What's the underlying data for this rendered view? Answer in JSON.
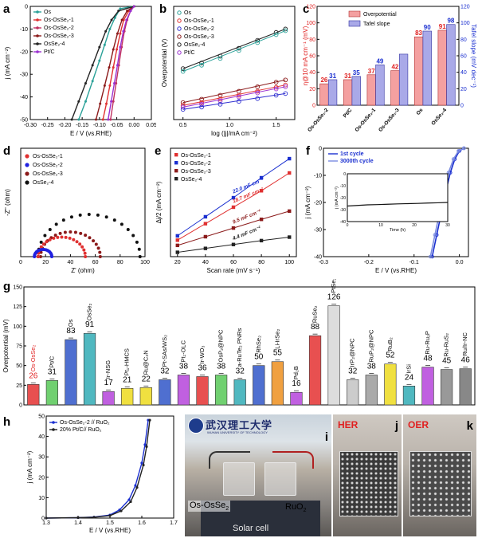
{
  "figure": {
    "panel_labels": [
      "a",
      "b",
      "c",
      "d",
      "e",
      "f",
      "g",
      "h",
      "i",
      "j",
      "k"
    ]
  },
  "colors": {
    "os": "#2aa198",
    "os_osse2_1": "#e03030",
    "os_osse2_2": "#c03060",
    "os_osse2_3": "#8b1a1a",
    "osse2_4": "#222222",
    "ptc": "#9b30d0",
    "overpotential_bar": "#f4a0a0",
    "tafel_bar": "#a9a9e8",
    "red_text": "#e02020",
    "blue_text": "#1a2fd0"
  },
  "chart_data": [
    {
      "id": "a",
      "type": "line",
      "xlabel": "E / V (vs.RHE)",
      "ylabel": "j (mA cm⁻²)",
      "xlim": [
        -0.3,
        0.05
      ],
      "ylim": [
        -50,
        0
      ],
      "xticks": [
        "-0.30",
        "-0.25",
        "-0.20",
        "-0.15",
        "-0.10",
        "-0.05",
        "0.00",
        "0.05"
      ],
      "yticks": [
        "0",
        "-10",
        "-20",
        "-30",
        "-40",
        "-50"
      ],
      "legend": [
        "Os",
        "Os-OsSe₂-1",
        "Os-OsSe₂-2",
        "Os-OsSe₂-3",
        "OsSe₂-4",
        "Pt/C"
      ],
      "series": [
        {
          "name": "Os",
          "color": "#2aa198",
          "x": [
            -0.16,
            -0.14,
            -0.12,
            -0.1,
            -0.085,
            -0.07,
            -0.055,
            -0.04,
            0.0
          ],
          "y": [
            -50,
            -42,
            -33,
            -24,
            -17,
            -10,
            -5,
            -1,
            0
          ]
        },
        {
          "name": "Os-OsSe₂-1",
          "color": "#e03030",
          "x": [
            -0.09,
            -0.08,
            -0.07,
            -0.06,
            -0.05,
            -0.04,
            -0.03,
            -0.015,
            0.0
          ],
          "y": [
            -50,
            -43,
            -35,
            -27,
            -19,
            -12,
            -6,
            -2,
            0
          ]
        },
        {
          "name": "Os-OsSe₂-2",
          "color": "#c03060",
          "x": [
            -0.068,
            -0.06,
            -0.052,
            -0.044,
            -0.036,
            -0.028,
            -0.02,
            -0.01,
            0.0
          ],
          "y": [
            -50,
            -42,
            -34,
            -26,
            -18,
            -11,
            -6,
            -2,
            0
          ]
        },
        {
          "name": "Os-OsSe₂-3",
          "color": "#8b1a1a",
          "x": [
            -0.11,
            -0.098,
            -0.085,
            -0.072,
            -0.06,
            -0.048,
            -0.035,
            -0.02,
            0.0
          ],
          "y": [
            -50,
            -43,
            -35,
            -27,
            -19,
            -12,
            -6,
            -2,
            0
          ]
        },
        {
          "name": "OsSe₂-4",
          "color": "#222222",
          "x": [
            -0.18,
            -0.16,
            -0.14,
            -0.12,
            -0.1,
            -0.082,
            -0.065,
            -0.045,
            0.0
          ],
          "y": [
            -50,
            -42,
            -34,
            -26,
            -18,
            -11,
            -6,
            -2,
            0
          ]
        },
        {
          "name": "Pt/C",
          "color": "#9b30d0",
          "x": [
            -0.075,
            -0.066,
            -0.057,
            -0.048,
            -0.04,
            -0.031,
            -0.022,
            -0.01,
            0.0
          ],
          "y": [
            -50,
            -42,
            -34,
            -26,
            -18,
            -11,
            -6,
            -2,
            0
          ]
        }
      ]
    },
    {
      "id": "b",
      "type": "scatter",
      "xlabel": "log (|j|/mA cm⁻²)",
      "ylabel": "Overpotential (V)",
      "xlim": [
        0.4,
        1.7
      ],
      "ylim": [
        0.0,
        0.2
      ],
      "xticks": [
        "0.5",
        "1.0",
        "1.5"
      ],
      "legend": [
        "Os",
        "Os-OsSe₂-1",
        "Os-OsSe₂-2",
        "Os-OsSe₂-3",
        "OsSe₂-4",
        "Pt/C"
      ],
      "series": [
        {
          "name": "OsSe₂-4",
          "color": "#222222",
          "x": [
            0.5,
            0.7,
            0.9,
            1.1,
            1.3,
            1.5,
            1.6
          ],
          "y": [
            0.09,
            0.1,
            0.112,
            0.126,
            0.14,
            0.154,
            0.16
          ]
        },
        {
          "name": "Os",
          "color": "#2aa198",
          "x": [
            0.5,
            0.7,
            0.9,
            1.1,
            1.3,
            1.5,
            1.6
          ],
          "y": [
            0.085,
            0.096,
            0.108,
            0.122,
            0.136,
            0.15,
            0.157
          ]
        },
        {
          "name": "Os-OsSe₂-3",
          "color": "#8b1a1a",
          "x": [
            0.5,
            0.7,
            0.9,
            1.1,
            1.3,
            1.5,
            1.6
          ],
          "y": [
            0.03,
            0.036,
            0.043,
            0.05,
            0.058,
            0.066,
            0.07
          ]
        },
        {
          "name": "Os-OsSe₂-1",
          "color": "#e03030",
          "x": [
            0.5,
            0.7,
            0.9,
            1.1,
            1.3,
            1.5,
            1.6
          ],
          "y": [
            0.025,
            0.03,
            0.036,
            0.043,
            0.05,
            0.057,
            0.061
          ]
        },
        {
          "name": "Pt/C",
          "color": "#9b30d0",
          "x": [
            0.5,
            0.7,
            0.9,
            1.1,
            1.3,
            1.5,
            1.6
          ],
          "y": [
            0.022,
            0.027,
            0.033,
            0.04,
            0.047,
            0.054,
            0.058
          ]
        },
        {
          "name": "Os-OsSe₂-2",
          "color": "#3030d0",
          "x": [
            0.5,
            0.7,
            0.9,
            1.1,
            1.3,
            1.5,
            1.6
          ],
          "y": [
            0.018,
            0.022,
            0.027,
            0.032,
            0.037,
            0.043,
            0.046
          ]
        }
      ]
    },
    {
      "id": "c",
      "type": "bar",
      "ylabel": "η@10 mA cm⁻¹ (mV)",
      "y2label": "Tafel slope (mV dec⁻¹)",
      "ylim": [
        0,
        120
      ],
      "yticks": [
        "0",
        "20",
        "40",
        "60",
        "80",
        "100",
        "120"
      ],
      "categories": [
        "Os-OsSe₂-2",
        "Pt/C",
        "Os-OsSe₂-1",
        "Os-OsSe₂-3",
        "Os",
        "OsSe₂-4"
      ],
      "legend": [
        "Overpotential",
        "Tafel slope"
      ],
      "series": [
        {
          "name": "Overpotential",
          "color": "#f4a0a0",
          "values": [
            26,
            31,
            37,
            42,
            83,
            91
          ]
        },
        {
          "name": "Tafel slope",
          "color": "#a9a9e8",
          "values": [
            31,
            35,
            49,
            62,
            90,
            98
          ]
        }
      ],
      "value_labels_overpotential": [
        "26",
        "31",
        "37",
        "42",
        "83",
        "91"
      ],
      "value_labels_tafel": [
        "31",
        "35",
        "49",
        "",
        "90",
        "98"
      ]
    },
    {
      "id": "d",
      "type": "scatter",
      "xlabel": "Z' (ohm)",
      "ylabel": "-Z'' (ohm)",
      "xlim": [
        0,
        100
      ],
      "ylim": [
        0,
        100
      ],
      "xticks": [
        "0",
        "20",
        "40",
        "60",
        "80",
        "100"
      ],
      "legend": [
        "Os-OsSe₂-1",
        "Os-OsSe₂-2",
        "Os-OsSe₂-3",
        "OsSe₂-4"
      ],
      "series": [
        {
          "name": "OsSe₂-4",
          "color": "#111111",
          "center": 55,
          "radius": 41,
          "offset": 12
        },
        {
          "name": "Os-OsSe₂-3",
          "color": "#8b1a1a",
          "center": 40,
          "radius": 24,
          "offset": 12
        },
        {
          "name": "Os-OsSe₂-1",
          "color": "#e03030",
          "center": 33,
          "radius": 19,
          "offset": 12
        },
        {
          "name": "Os-OsSe₂-2",
          "color": "#2020e0",
          "center": 18,
          "radius": 7,
          "offset": 11
        }
      ]
    },
    {
      "id": "e",
      "type": "line",
      "xlabel": "Scan rate (mV s⁻¹)",
      "ylabel": "Δj/2 (mA cm⁻²)",
      "xlim": [
        15,
        105
      ],
      "ylim": [
        0,
        2.5
      ],
      "xticks": [
        "20",
        "40",
        "60",
        "80",
        "100"
      ],
      "legend": [
        "Os-OsSe₂-1",
        "Os-OsSe₂-2",
        "Os-OsSe₂-3",
        "OsSe₂-4"
      ],
      "x": [
        20,
        40,
        60,
        80,
        100
      ],
      "series": [
        {
          "name": "Os-OsSe₂-2",
          "color": "#1a2fd0",
          "values": [
            0.48,
            0.92,
            1.36,
            1.82,
            2.26
          ],
          "slope_label": "22.0 mF cm⁻²"
        },
        {
          "name": "Os-OsSe₂-1",
          "color": "#e03030",
          "values": [
            0.38,
            0.76,
            1.14,
            1.52,
            1.93
          ],
          "slope_label": "18.7 mF cm⁻²"
        },
        {
          "name": "Os-OsSe₂-3",
          "color": "#8b1a1a",
          "values": [
            0.26,
            0.46,
            0.66,
            0.86,
            1.05
          ],
          "slope_label": "9.5 mF cm⁻²"
        },
        {
          "name": "OsSe₂-4",
          "color": "#222222",
          "values": [
            0.1,
            0.19,
            0.28,
            0.37,
            0.45
          ],
          "slope_label": "4.4 mF cm⁻²"
        }
      ]
    },
    {
      "id": "f",
      "type": "line",
      "xlabel": "E / V (vs.RHE)",
      "ylabel": "j (mA cm⁻²)",
      "xlim": [
        -0.3,
        0.02
      ],
      "ylim": [
        -40,
        0
      ],
      "xticks": [
        "-0.3",
        "-0.2",
        "-0.1",
        "0.0"
      ],
      "yticks": [
        "0",
        "-10",
        "-20",
        "-30",
        "-40"
      ],
      "legend": [
        "1st cycle",
        "3000th cycle"
      ],
      "series": [
        {
          "name": "1st cycle",
          "color": "#1a2fd0",
          "x": [
            -0.06,
            -0.05,
            -0.04,
            -0.03,
            -0.02,
            -0.01,
            0.0,
            0.01
          ],
          "y": [
            -40,
            -32,
            -24,
            -16,
            -9,
            -4,
            -1,
            0
          ]
        },
        {
          "name": "3000th cycle",
          "color": "#7a8be0",
          "x": [
            -0.064,
            -0.054,
            -0.044,
            -0.034,
            -0.024,
            -0.013,
            -0.002,
            0.01
          ],
          "y": [
            -40,
            -32,
            -24,
            -16,
            -9,
            -4,
            -1,
            0
          ]
        }
      ],
      "inset": {
        "type": "line",
        "xlabel": "Time (h)",
        "ylabel": "j (mA cm⁻²)",
        "xlim": [
          0,
          30
        ],
        "ylim": [
          -40,
          0
        ],
        "xticks": [
          "0",
          "10",
          "20",
          "30"
        ],
        "yticks": [
          "0",
          "-10",
          "-20",
          "-30",
          "-40"
        ],
        "x": [
          0,
          3,
          6,
          9,
          12,
          15,
          18,
          21,
          24,
          27,
          30
        ],
        "y": [
          -27,
          -26.5,
          -26,
          -25.8,
          -25.5,
          -25.2,
          -25,
          -24.8,
          -24.5,
          -24.3,
          -24
        ]
      }
    },
    {
      "id": "g",
      "type": "bar",
      "ylabel": "Overpotential (mV)",
      "ylim": [
        0,
        150
      ],
      "yticks": [
        "0",
        "25",
        "50",
        "75",
        "100",
        "125",
        "150"
      ],
      "categories": [
        "Os-OsSe₂",
        "Pt/C",
        "Os",
        "OsSe₂",
        "Ir-NSG",
        "Pt₁-HMCS",
        "Ru@C₂N",
        "Pt-SAs/WS₂",
        "Pt₁-OLC",
        "Ir-WO₃",
        "OsP₂@NPC",
        "a-RuTe₂ PNRs",
        "RhSe₂",
        "Li-IrSe₂",
        "Pd₂B",
        "RuSe₂",
        "PtSe₂",
        "IrP₂@NPC",
        "RuP₂@NPC",
        "RuB₂",
        "IrSi",
        "Ru-Ru₂P",
        "Ru-RuS₂",
        "Ru/Ir-NC"
      ],
      "values": [
        26,
        31,
        83,
        91,
        17,
        21,
        22,
        32,
        38,
        36,
        38,
        32,
        50,
        55,
        16,
        88,
        126,
        32,
        38,
        52,
        24,
        48,
        45,
        46
      ],
      "colors": [
        "#e85050",
        "#70d070",
        "#4f6fd0",
        "#50b8c0",
        "#c060e0",
        "#f0e040",
        "#f0e040",
        "#4f6fd0",
        "#c060e0",
        "#e85050",
        "#70d070",
        "#50b8c0",
        "#4f6fd0",
        "#f0a040",
        "#c060e0",
        "#e85050",
        "#dddddd",
        "#cccccc",
        "#aaaaaa",
        "#f0e040",
        "#50b8c0",
        "#c060e0",
        "#999999",
        "#888888"
      ],
      "highlight": [
        "Os-OsSe₂"
      ]
    },
    {
      "id": "h",
      "type": "line",
      "xlabel": "E / V (vs.RHE)",
      "ylabel": "j (mA cm⁻²)",
      "xlim": [
        1.3,
        1.7
      ],
      "ylim": [
        0,
        50
      ],
      "xticks": [
        "1.3",
        "1.4",
        "1.5",
        "1.6",
        "1.7"
      ],
      "yticks": [
        "0",
        "10",
        "20",
        "30",
        "40",
        "50"
      ],
      "legend": [
        "Os-OsSe₂-2 // RuO₂",
        "20% Pt/C// RuO₂"
      ],
      "series": [
        {
          "name": "Os-OsSe₂-2 // RuO₂",
          "color": "#1a2fd0",
          "x": [
            1.3,
            1.4,
            1.45,
            1.5,
            1.53,
            1.56,
            1.58,
            1.6,
            1.61,
            1.62
          ],
          "y": [
            0,
            0.2,
            0.5,
            1.5,
            4,
            9,
            16,
            27,
            36,
            48
          ]
        },
        {
          "name": "20% Pt/C// RuO₂",
          "color": "#222222",
          "x": [
            1.3,
            1.4,
            1.45,
            1.5,
            1.535,
            1.565,
            1.585,
            1.605,
            1.615,
            1.625
          ],
          "y": [
            0,
            0.2,
            0.4,
            1.2,
            3.5,
            8,
            15,
            26,
            35,
            48
          ]
        }
      ]
    }
  ],
  "panel_i": {
    "university_name": "武汉理工大学",
    "university_subtitle": "WUHAN UNIVERSITY OF TECHNOLOGY",
    "left_electrode": "Os-OsSe₂",
    "right_electrode": "RuO₂",
    "bottom_label": "Solar cell"
  },
  "panel_j": {
    "label": "HER"
  },
  "panel_k": {
    "label": "OER"
  }
}
